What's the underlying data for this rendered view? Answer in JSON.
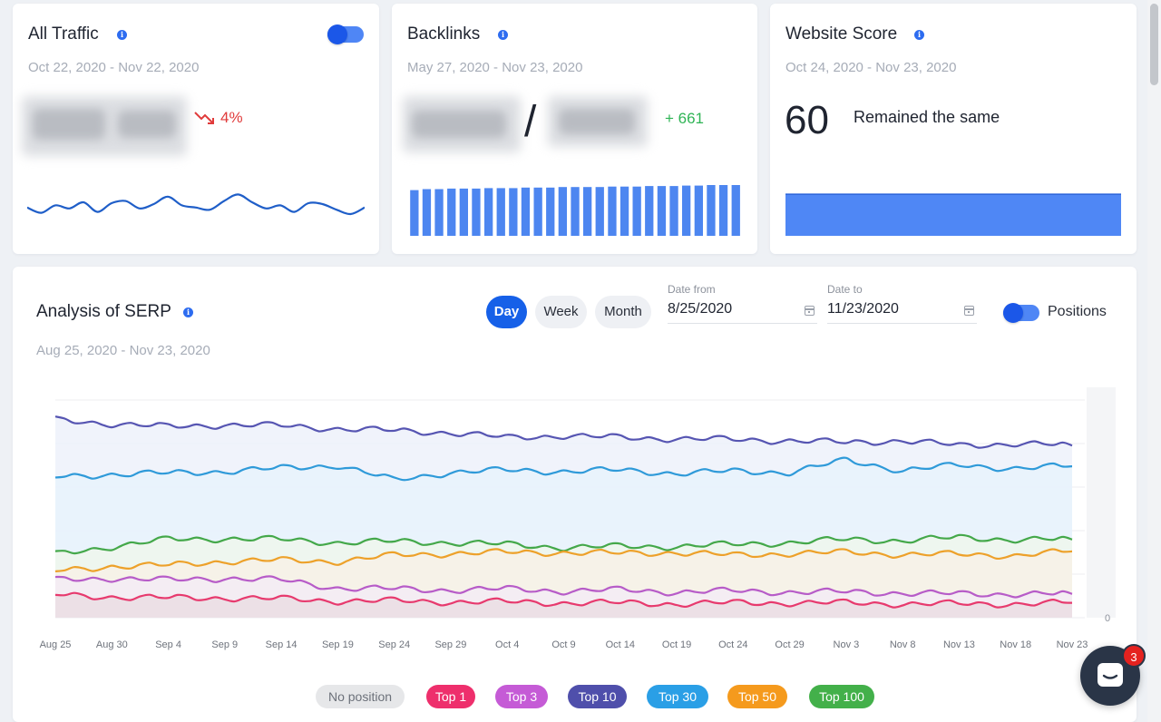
{
  "all_traffic": {
    "title": "All Traffic",
    "date_range": "Oct 22, 2020 - Nov 22, 2020",
    "change": "4%",
    "trend_color": "#e03b3b",
    "toggle_on": true
  },
  "backlinks": {
    "title": "Backlinks",
    "date_range": "May 27, 2020 - Nov 23, 2020",
    "separator": "/",
    "change": "+ 661",
    "change_color": "#2fb455"
  },
  "website_score": {
    "title": "Website Score",
    "date_range": "Oct 24, 2020 - Nov 23, 2020",
    "score": "60",
    "status": "Remained the same"
  },
  "serp": {
    "title": "Analysis of SERP",
    "date_range": "Aug 25, 2020 - Nov 23, 2020",
    "periods": [
      "Day",
      "Week",
      "Month"
    ],
    "active_period": "Day",
    "date_from_label": "Date from",
    "date_from": "8/25/2020",
    "date_to_label": "Date to",
    "date_to": "11/23/2020",
    "positions_label": "Positions",
    "positions_toggle_on": true
  },
  "legend": [
    {
      "label": "No position",
      "bg": "#e6e7e9",
      "fg": "#6c717a"
    },
    {
      "label": "Top 1",
      "bg": "#ee2f6c",
      "fg": "#ffffff"
    },
    {
      "label": "Top 3",
      "bg": "#c55bd6",
      "fg": "#ffffff"
    },
    {
      "label": "Top 10",
      "bg": "#4f4fab",
      "fg": "#ffffff"
    },
    {
      "label": "Top 30",
      "bg": "#2a9fe6",
      "fg": "#ffffff"
    },
    {
      "label": "Top 50",
      "bg": "#f59a1d",
      "fg": "#ffffff"
    },
    {
      "label": "Top 100",
      "bg": "#43b04a",
      "fg": "#ffffff"
    }
  ],
  "chat": {
    "badge": "3"
  },
  "chart_data": [
    {
      "type": "line",
      "title": "All Traffic",
      "series": [
        {
          "values": [
            0.4,
            0.28,
            0.45,
            0.38,
            0.52,
            0.3,
            0.5,
            0.55,
            0.38,
            0.48,
            0.65,
            0.45,
            0.4,
            0.35,
            0.55,
            0.7,
            0.52,
            0.38,
            0.45,
            0.3,
            0.5,
            0.48,
            0.35,
            0.25,
            0.4
          ],
          "color": "#1f5ec8"
        }
      ],
      "axis_values_shown": false
    },
    {
      "type": "bar",
      "title": "Backlinks",
      "values": [
        0.9,
        0.92,
        0.92,
        0.93,
        0.93,
        0.93,
        0.94,
        0.94,
        0.94,
        0.95,
        0.95,
        0.95,
        0.96,
        0.96,
        0.96,
        0.96,
        0.97,
        0.97,
        0.97,
        0.98,
        0.98,
        0.98,
        0.99,
        0.99,
        1.0,
        1.0,
        1.0
      ],
      "color": "#4d86f0",
      "axis_values_shown": false
    },
    {
      "type": "area",
      "title": "Website Score",
      "values": [
        60,
        60,
        60,
        60,
        60,
        60,
        60,
        60,
        60,
        60,
        60,
        60,
        60,
        60,
        60,
        60,
        60,
        60,
        60,
        60,
        60,
        60,
        60,
        60,
        60,
        60,
        60,
        60,
        60,
        60,
        60
      ],
      "color": "#4f87f5",
      "axis_values_shown": false
    },
    {
      "type": "line",
      "title": "Analysis of SERP",
      "categories": [
        "Aug 25",
        "Aug 30",
        "Sep 4",
        "Sep 9",
        "Sep 14",
        "Sep 19",
        "Sep 24",
        "Sep 29",
        "Oct 4",
        "Oct 9",
        "Oct 14",
        "Oct 19",
        "Oct 24",
        "Oct 29",
        "Nov 3",
        "Nov 8",
        "Nov 13",
        "Nov 18",
        "Nov 23"
      ],
      "y_tick_labels": [
        "0"
      ],
      "grid": true,
      "stacked_area": true,
      "series": [
        {
          "name": "Top 10",
          "color": "#5655b2",
          "values": [
            200,
            196,
            193,
            195,
            194,
            191,
            189,
            187,
            182,
            184,
            182,
            181,
            180,
            179,
            177,
            179,
            174,
            176,
            174
          ]
        },
        {
          "name": "Top 30",
          "color": "#2f9ad9",
          "values": [
            142,
            145,
            146,
            148,
            151,
            154,
            139,
            147,
            149,
            148,
            149,
            146,
            148,
            147,
            159,
            149,
            154,
            151,
            153
          ]
        },
        {
          "name": "Top 100",
          "color": "#44a84a",
          "values": [
            64,
            72,
            79,
            80,
            79,
            76,
            77,
            76,
            74,
            71,
            72,
            72,
            74,
            76,
            79,
            78,
            81,
            79,
            79
          ]
        },
        {
          "name": "Top 50",
          "color": "#eda12a",
          "values": [
            47,
            52,
            53,
            57,
            58,
            57,
            63,
            65,
            66,
            66,
            65,
            66,
            63,
            65,
            66,
            64,
            64,
            63,
            67
          ]
        },
        {
          "name": "Top 3",
          "color": "#b75cc8",
          "values": [
            38,
            40,
            38,
            40,
            38,
            30,
            29,
            28,
            29,
            27,
            28,
            26,
            27,
            26,
            26,
            25,
            24,
            24,
            24
          ]
        },
        {
          "name": "Top 1",
          "color": "#e73a6e",
          "values": [
            23,
            21,
            20,
            20,
            19,
            17,
            17,
            16,
            16,
            15,
            15,
            14,
            15,
            15,
            15,
            14,
            14,
            14,
            15
          ]
        }
      ]
    }
  ]
}
